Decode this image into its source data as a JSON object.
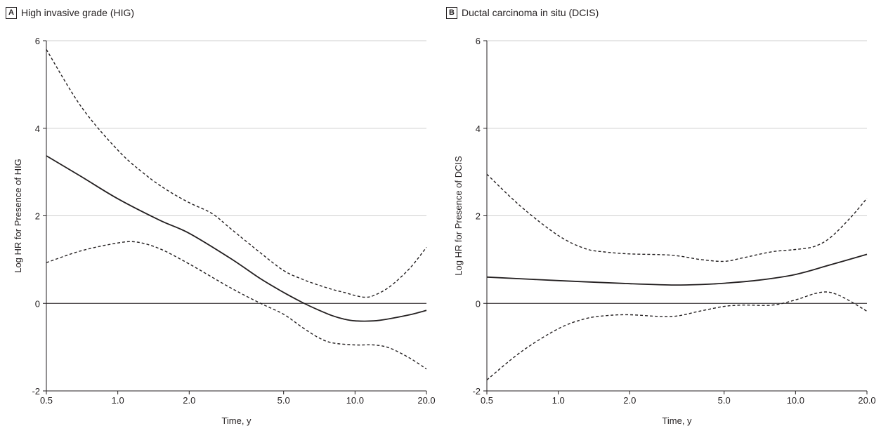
{
  "chart_data": [
    {
      "type": "line",
      "panel_letter": "A",
      "title": "High invasive grade (HIG)",
      "xlabel": "Time, y",
      "ylabel": "Log HR for Presence of HIG",
      "xscale": "log",
      "xlim": [
        0.5,
        20.0
      ],
      "ylim": [
        -2,
        6
      ],
      "x_ticks": [
        0.5,
        1.0,
        2.0,
        5.0,
        10.0,
        20.0
      ],
      "x_tick_labels": [
        "0.5",
        "1.0",
        "2.0",
        "5.0",
        "10.0",
        "20.0"
      ],
      "y_ticks": [
        -2,
        0,
        2,
        4,
        6
      ],
      "y_tick_labels": [
        "-2",
        "0",
        "2",
        "4",
        "6"
      ],
      "grid": "horizontal",
      "reference_line": 0,
      "series": [
        {
          "style": "solid",
          "x": [
            0.5,
            0.7,
            1.0,
            1.5,
            2.0,
            3.0,
            4.0,
            5.0,
            6.0,
            7.0,
            8.0,
            9.0,
            10.0,
            12.0,
            14.0,
            17.0,
            20.0
          ],
          "y": [
            3.37,
            2.9,
            2.39,
            1.9,
            1.6,
            1.02,
            0.56,
            0.25,
            0.02,
            -0.15,
            -0.28,
            -0.36,
            -0.4,
            -0.4,
            -0.35,
            -0.26,
            -0.16
          ]
        },
        {
          "style": "dashed",
          "x": [
            0.5,
            0.7,
            1.0,
            1.3,
            1.6,
            2.0,
            2.5,
            3.0,
            4.0,
            5.0,
            6.0,
            7.0,
            8.0,
            9.0,
            10.0,
            11.0,
            12.0,
            14.0,
            17.0,
            20.0
          ],
          "y": [
            5.8,
            4.5,
            3.5,
            2.95,
            2.6,
            2.3,
            2.05,
            1.7,
            1.15,
            0.75,
            0.55,
            0.42,
            0.32,
            0.25,
            0.18,
            0.14,
            0.18,
            0.38,
            0.8,
            1.28
          ]
        },
        {
          "style": "dashed",
          "x": [
            0.5,
            0.7,
            1.0,
            1.2,
            1.5,
            2.0,
            3.0,
            4.0,
            5.0,
            6.0,
            7.0,
            8.0,
            10.0,
            12.0,
            14.0,
            17.0,
            20.0
          ],
          "y": [
            0.93,
            1.2,
            1.38,
            1.4,
            1.25,
            0.9,
            0.35,
            0.0,
            -0.25,
            -0.55,
            -0.78,
            -0.9,
            -0.95,
            -0.95,
            -1.02,
            -1.25,
            -1.5
          ]
        }
      ]
    },
    {
      "type": "line",
      "panel_letter": "B",
      "title": "Ductal carcinoma in situ (DCIS)",
      "xlabel": "Time, y",
      "ylabel": "Log HR for Presence of DCIS",
      "xscale": "log",
      "xlim": [
        0.5,
        20.0
      ],
      "ylim": [
        -2,
        6
      ],
      "x_ticks": [
        0.5,
        1.0,
        2.0,
        5.0,
        10.0,
        20.0
      ],
      "x_tick_labels": [
        "0.5",
        "1.0",
        "2.0",
        "5.0",
        "10.0",
        "20.0"
      ],
      "y_ticks": [
        -2,
        0,
        2,
        4,
        6
      ],
      "y_tick_labels": [
        "-2",
        "0",
        "2",
        "4",
        "6"
      ],
      "grid": "horizontal",
      "reference_line": 0,
      "series": [
        {
          "style": "solid",
          "x": [
            0.5,
            1.0,
            2.0,
            3.0,
            4.0,
            5.0,
            7.0,
            10.0,
            14.0,
            20.0
          ],
          "y": [
            0.6,
            0.52,
            0.45,
            0.42,
            0.43,
            0.46,
            0.53,
            0.66,
            0.88,
            1.12
          ]
        },
        {
          "style": "dashed",
          "x": [
            0.5,
            0.7,
            1.0,
            1.3,
            1.6,
            2.0,
            3.0,
            4.0,
            5.0,
            6.0,
            8.0,
            10.0,
            12.0,
            14.0,
            17.0,
            20.0
          ],
          "y": [
            2.95,
            2.2,
            1.55,
            1.25,
            1.17,
            1.13,
            1.1,
            1.0,
            0.96,
            1.04,
            1.18,
            1.23,
            1.3,
            1.5,
            1.95,
            2.4
          ]
        },
        {
          "style": "dashed",
          "x": [
            0.5,
            0.7,
            1.0,
            1.3,
            1.6,
            2.0,
            3.0,
            4.0,
            5.0,
            6.0,
            8.0,
            10.0,
            12.0,
            13.5,
            15.0,
            17.0,
            20.0
          ],
          "y": [
            -1.75,
            -1.1,
            -0.58,
            -0.35,
            -0.28,
            -0.26,
            -0.3,
            -0.17,
            -0.07,
            -0.04,
            -0.04,
            0.08,
            0.22,
            0.26,
            0.2,
            0.05,
            -0.18
          ]
        }
      ]
    }
  ]
}
